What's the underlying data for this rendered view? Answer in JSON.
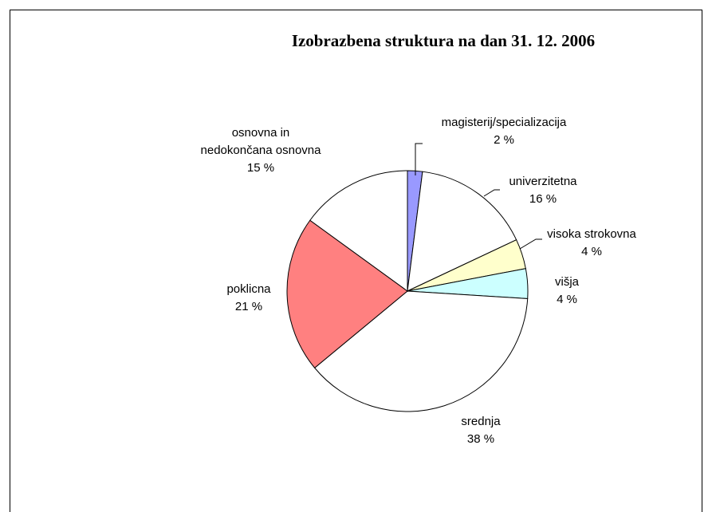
{
  "chart_data": {
    "type": "pie",
    "title": "Izobrazbena struktura na dan 31. 12. 2006",
    "categories": [
      "magisterij/specializacija",
      "univerzitetna",
      "visoka strokovna",
      "višja",
      "srednja",
      "poklicna",
      "osnovna in nedokončana osnovna"
    ],
    "values": [
      2,
      16,
      4,
      4,
      38,
      21,
      15
    ],
    "value_labels": [
      "2 %",
      "16 %",
      "4 %",
      "4 %",
      "38 %",
      "21 %",
      "15 %"
    ],
    "colors": [
      "#9999ff",
      "#ffffff",
      "#ffffcc",
      "#ccffff",
      "#ffffff",
      "#ff8080",
      "#ffffff"
    ]
  }
}
